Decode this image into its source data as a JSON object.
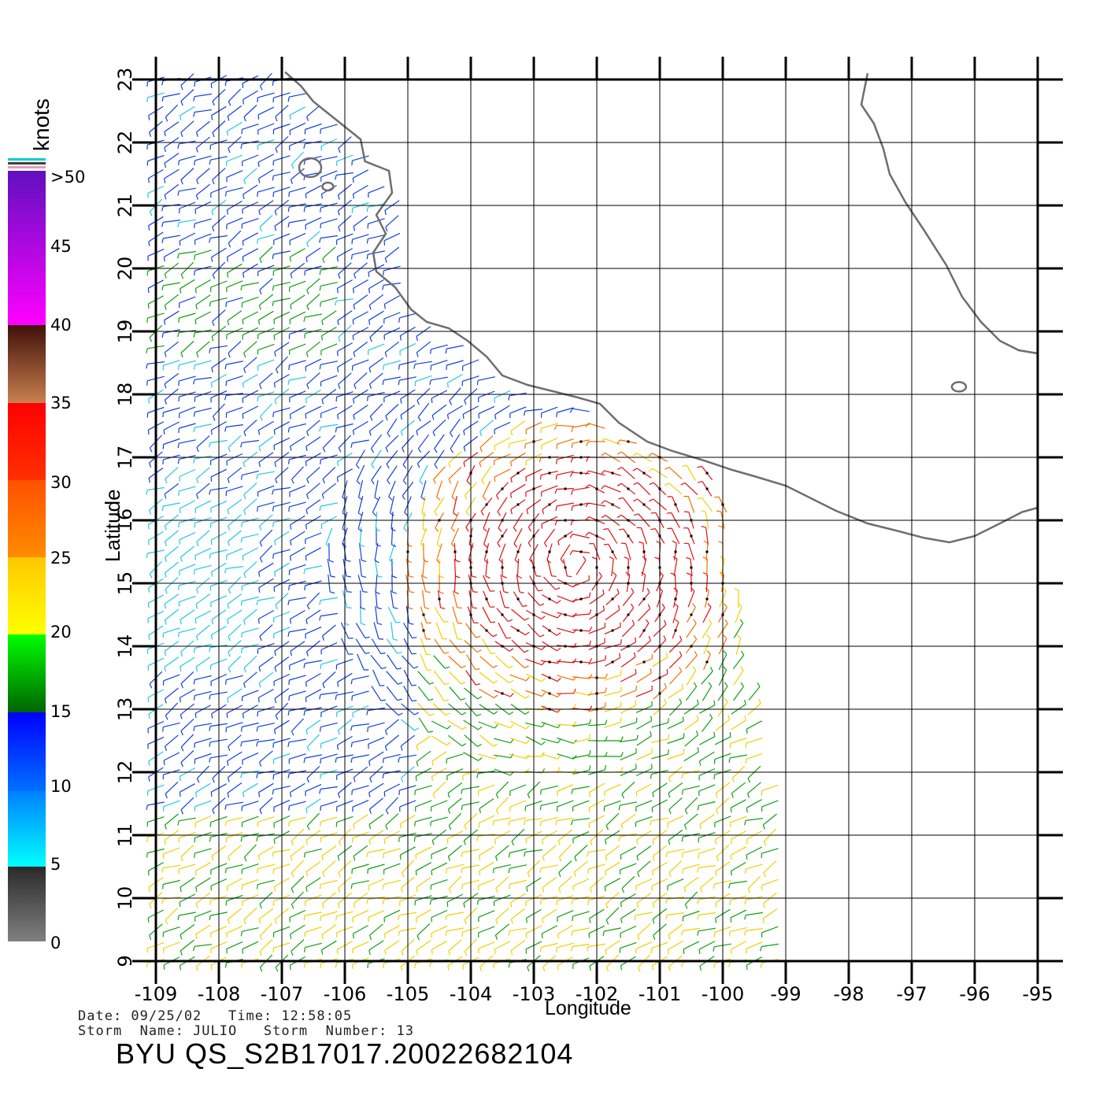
{
  "map": {
    "lon_range": [
      -109,
      -95
    ],
    "lat_range": [
      9,
      23
    ],
    "lon_ticks": [
      "-109",
      "-108",
      "-107",
      "-106",
      "-105",
      "-104",
      "-103",
      "-102",
      "-101",
      "-100",
      "-99",
      "-98",
      "-97",
      "-96",
      "-95"
    ],
    "lat_ticks": [
      "9",
      "10",
      "11",
      "12",
      "13",
      "14",
      "15",
      "16",
      "17",
      "18",
      "19",
      "20",
      "21",
      "22",
      "23"
    ],
    "xlabel": "Longitude",
    "ylabel": "Latitude",
    "grid": true,
    "content": "wind-barb field with coastline"
  },
  "colorbar": {
    "unit": "knots",
    "labels": [
      "0",
      "5",
      "10",
      "15",
      "20",
      "25",
      "30",
      "35",
      "40",
      "45",
      ">50"
    ],
    "colors": {
      "0_5": [
        "#808080",
        "#2a2a2a"
      ],
      "5_10": [
        "#00ffff",
        "#0080ff"
      ],
      "10_15": [
        "#0070ff",
        "#0000ff"
      ],
      "15_20": [
        "#006400",
        "#00ff00"
      ],
      "20_25": [
        "#ffff00",
        "#ffc800"
      ],
      "25_30": [
        "#ff8c00",
        "#ff5000"
      ],
      "30_35": [
        "#ff3000",
        "#ff0000"
      ],
      "35_40": [
        "#c88050",
        "#401008"
      ],
      "40_50": [
        "#ff00ff",
        "#6010c0"
      ]
    }
  },
  "footer": {
    "date_line": "Date: 09/25/02   Time: 12:58:05",
    "storm_line": "Storm  Name: JULIO   Storm  Number: 13",
    "file_id": "BYU  QS_S2B17017.20022682104"
  }
}
